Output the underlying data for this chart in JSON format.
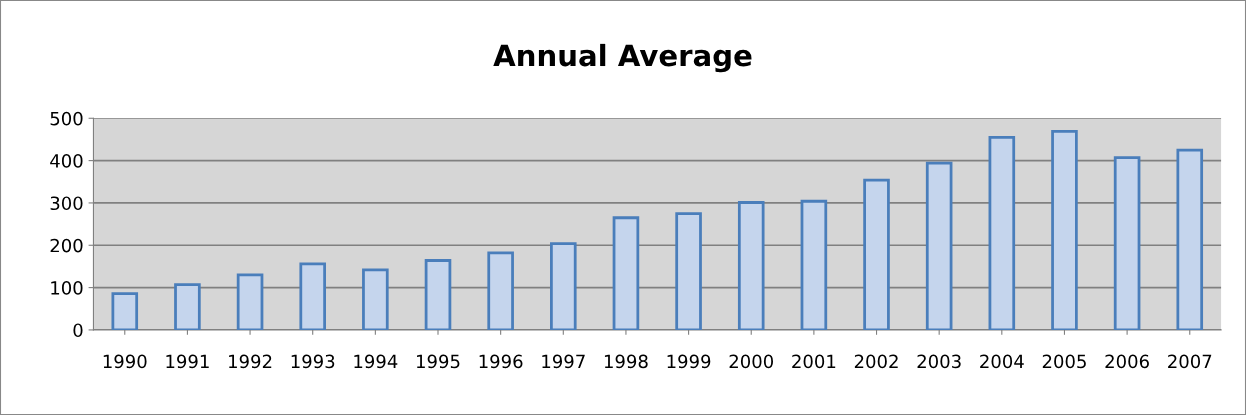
{
  "chart_data": {
    "type": "bar",
    "title": "Annual Average",
    "categories": [
      "1990",
      "1991",
      "1992",
      "1993",
      "1994",
      "1995",
      "1996",
      "1997",
      "1998",
      "1999",
      "2000",
      "2001",
      "2002",
      "2003",
      "2004",
      "2005",
      "2006",
      "2007"
    ],
    "values": [
      86,
      107,
      130,
      156,
      142,
      164,
      182,
      204,
      265,
      275,
      301,
      304,
      354,
      394,
      455,
      469,
      407,
      425
    ],
    "color": "#c5d5ed",
    "ylim": [
      0,
      500
    ],
    "yticks": [
      0,
      100,
      200,
      300,
      400,
      500
    ],
    "grid": "y",
    "legend": false
  }
}
